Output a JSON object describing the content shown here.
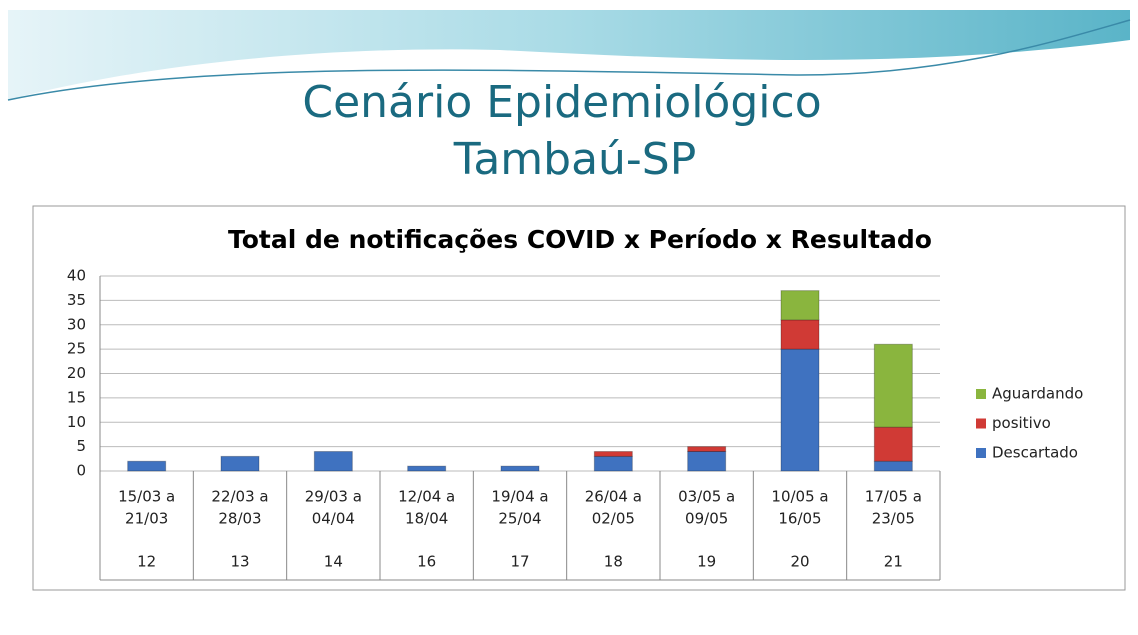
{
  "heading": {
    "title": "Cenário Epidemiológico",
    "subtitle": "Tambaú-SP"
  },
  "chart_data": {
    "type": "stacked_bar",
    "title": "Total de notificações COVID x Período x Resultado",
    "categories": [
      [
        "15/03 a",
        "21/03"
      ],
      [
        "22/03 a",
        "28/03"
      ],
      [
        "29/03 a",
        "04/04"
      ],
      [
        "12/04 a",
        "18/04"
      ],
      [
        "19/04 a",
        "25/04"
      ],
      [
        "26/04 a",
        "02/05"
      ],
      [
        "03/05 a",
        "09/05"
      ],
      [
        "10/05 a",
        "16/05"
      ],
      [
        "17/05 a",
        "23/05"
      ]
    ],
    "weeks": [
      12,
      13,
      14,
      16,
      17,
      18,
      19,
      20,
      21
    ],
    "series": [
      {
        "name": "Descartado",
        "color": "#3f72c0",
        "values": [
          2,
          3,
          4,
          1,
          1,
          3,
          4,
          25,
          2
        ]
      },
      {
        "name": "positivo",
        "color": "#d03a35",
        "values": [
          0,
          0,
          0,
          0,
          0,
          1,
          1,
          6,
          7
        ]
      },
      {
        "name": "Aguardando",
        "color": "#8ab53e",
        "values": [
          0,
          0,
          0,
          0,
          0,
          0,
          0,
          6,
          17
        ]
      }
    ],
    "ylim": [
      0,
      40
    ],
    "yticks": [
      0,
      5,
      10,
      15,
      20,
      25,
      30,
      35,
      40
    ],
    "grid": true,
    "legend": "right"
  }
}
